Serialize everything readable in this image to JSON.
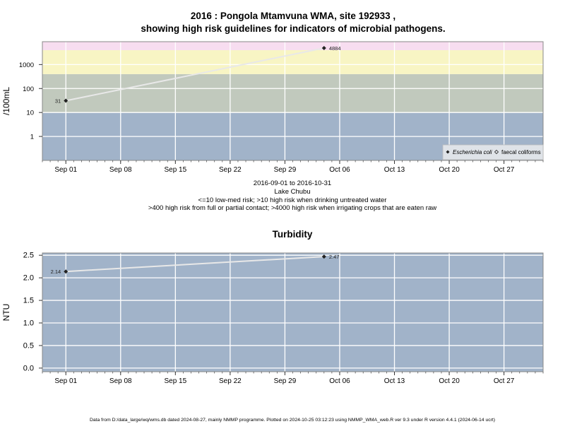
{
  "title_line1": "2016 : Pongola Mtamvuna WMA, site 192933 ,",
  "title_line2": "showing high risk guidelines for indicators of microbial pathogens.",
  "caption_lines": [
    "2016-09-01 to 2016-10-31",
    "Lake Chubu",
    "<=10 low-med risk; >10 high risk when drinking untreated water",
    ">400 high risk from full or partial contact; >4000 high risk when irrigating crops that are eaten raw"
  ],
  "footer": "Data from D:/data_large/wq/wms.db dated 2024-08-27, mainly NMMP programme. Plotted on 2024-10-25 03:12:23 using NMMP_WMA_web.R ver 9.3 under R version 4.4.1 (2024-06-14 ucrt)",
  "colors": {
    "band_low": "#a1b3c9",
    "band_med": "#c1c9bd",
    "band_high": "#f8f5c4",
    "band_irrig": "#f7ddf0",
    "grid": "#ffffff",
    "series_line": "#e8e8e8",
    "point": "#222222"
  },
  "chart_data": [
    {
      "type": "line",
      "title": "",
      "xlabel": "",
      "ylabel": "/100mL",
      "y_scale": "log10",
      "ylim": [
        0.1,
        9000
      ],
      "x_ticks": [
        "2016-09-01",
        "2016-09-08",
        "2016-09-15",
        "2016-09-22",
        "2016-09-29",
        "2016-10-06",
        "2016-10-13",
        "2016-10-20",
        "2016-10-27"
      ],
      "x_tick_labels": [
        "Sep 01",
        "Sep 08",
        "Sep 15",
        "Sep 22",
        "Sep 29",
        "Oct 06",
        "Oct 13",
        "Oct 20",
        "Oct 27"
      ],
      "xlim": [
        "2016-08-29",
        "2016-11-01"
      ],
      "y_ticks": [
        1,
        10,
        100,
        1000
      ],
      "y_tick_labels": [
        "1",
        "10",
        "100",
        "1000"
      ],
      "bands": [
        {
          "from": 0.1,
          "to": 10,
          "color": "#a1b3c9"
        },
        {
          "from": 10,
          "to": 400,
          "color": "#c1c9bd"
        },
        {
          "from": 400,
          "to": 4000,
          "color": "#f8f5c4"
        },
        {
          "from": 4000,
          "to": 9000,
          "color": "#f7ddf0"
        }
      ],
      "legend_position": "bottom-right",
      "legend": [
        {
          "name": "Escherichia coli",
          "marker": "filled-diamond"
        },
        {
          "name": "faecal coliforms",
          "marker": "open-diamond"
        }
      ],
      "series": [
        {
          "name": "Escherichia coli",
          "points": [
            {
              "x": "2016-09-01",
              "y": 31,
              "label": "31"
            },
            {
              "x": "2016-10-04",
              "y": 4884,
              "label": "4884"
            }
          ]
        }
      ]
    },
    {
      "type": "line",
      "title": "Turbidity",
      "xlabel": "",
      "ylabel": "NTU",
      "y_scale": "linear",
      "ylim": [
        -0.08,
        2.55
      ],
      "x_ticks": [
        "2016-09-01",
        "2016-09-08",
        "2016-09-15",
        "2016-09-22",
        "2016-09-29",
        "2016-10-06",
        "2016-10-13",
        "2016-10-20",
        "2016-10-27"
      ],
      "x_tick_labels": [
        "Sep 01",
        "Sep 08",
        "Sep 15",
        "Sep 22",
        "Sep 29",
        "Oct 06",
        "Oct 13",
        "Oct 20",
        "Oct 27"
      ],
      "xlim": [
        "2016-08-29",
        "2016-11-01"
      ],
      "y_ticks": [
        0,
        0.5,
        1.0,
        1.5,
        2.0,
        2.5
      ],
      "y_tick_labels": [
        "0.0",
        "0.5",
        "1.0",
        "1.5",
        "2.0",
        "2.5"
      ],
      "series": [
        {
          "name": "",
          "points": [
            {
              "x": "2016-09-01",
              "y": 2.14,
              "label": "2.14"
            },
            {
              "x": "2016-10-04",
              "y": 2.47,
              "label": "2.47"
            }
          ]
        }
      ]
    }
  ]
}
